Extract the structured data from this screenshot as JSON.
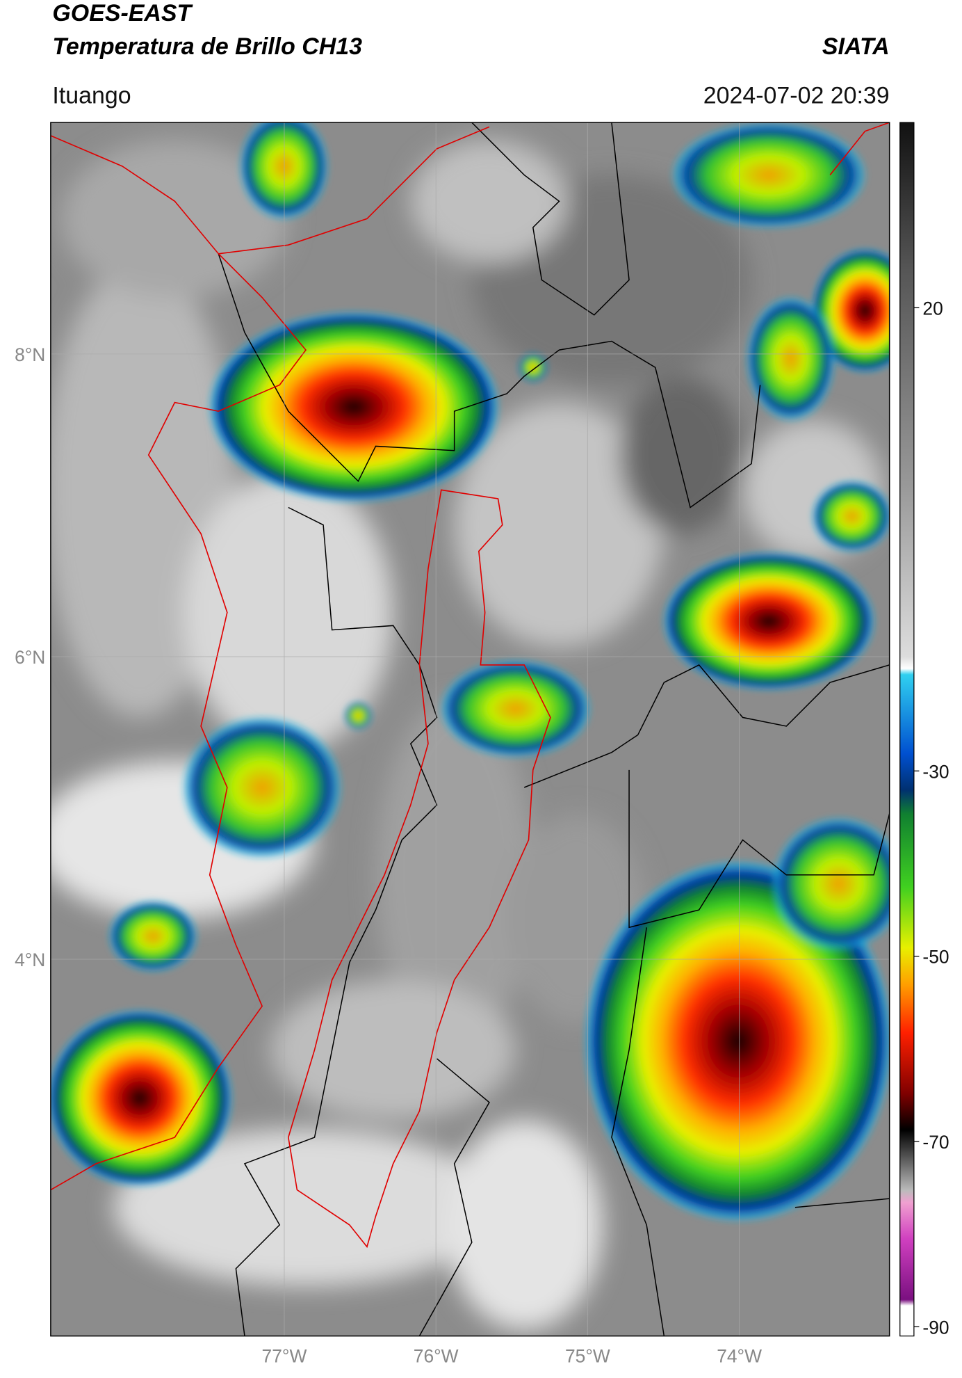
{
  "header": {
    "title": "GOES-EAST",
    "subtitle": "Temperatura de Brillo CH13",
    "brand": "SIATA",
    "location": "Ituango",
    "datetime": "2024-07-02 20:39"
  },
  "map": {
    "latlim": [
      1.51,
      9.53
    ],
    "lonlim": [
      -78.54,
      -73.01
    ],
    "lat_ticks": [
      {
        "value": 8,
        "label": "8°N"
      },
      {
        "value": 6,
        "label": "6°N"
      },
      {
        "value": 4,
        "label": "4°N"
      }
    ],
    "lon_ticks": [
      {
        "value": -77,
        "label": "77°W"
      },
      {
        "value": -76,
        "label": "76°W"
      },
      {
        "value": -75,
        "label": "75°W"
      },
      {
        "value": -74,
        "label": "74°W"
      }
    ]
  },
  "colorbar": {
    "lim": [
      -91,
      40
    ],
    "ticks": [
      20,
      -30,
      -50,
      -70,
      -90
    ]
  }
}
